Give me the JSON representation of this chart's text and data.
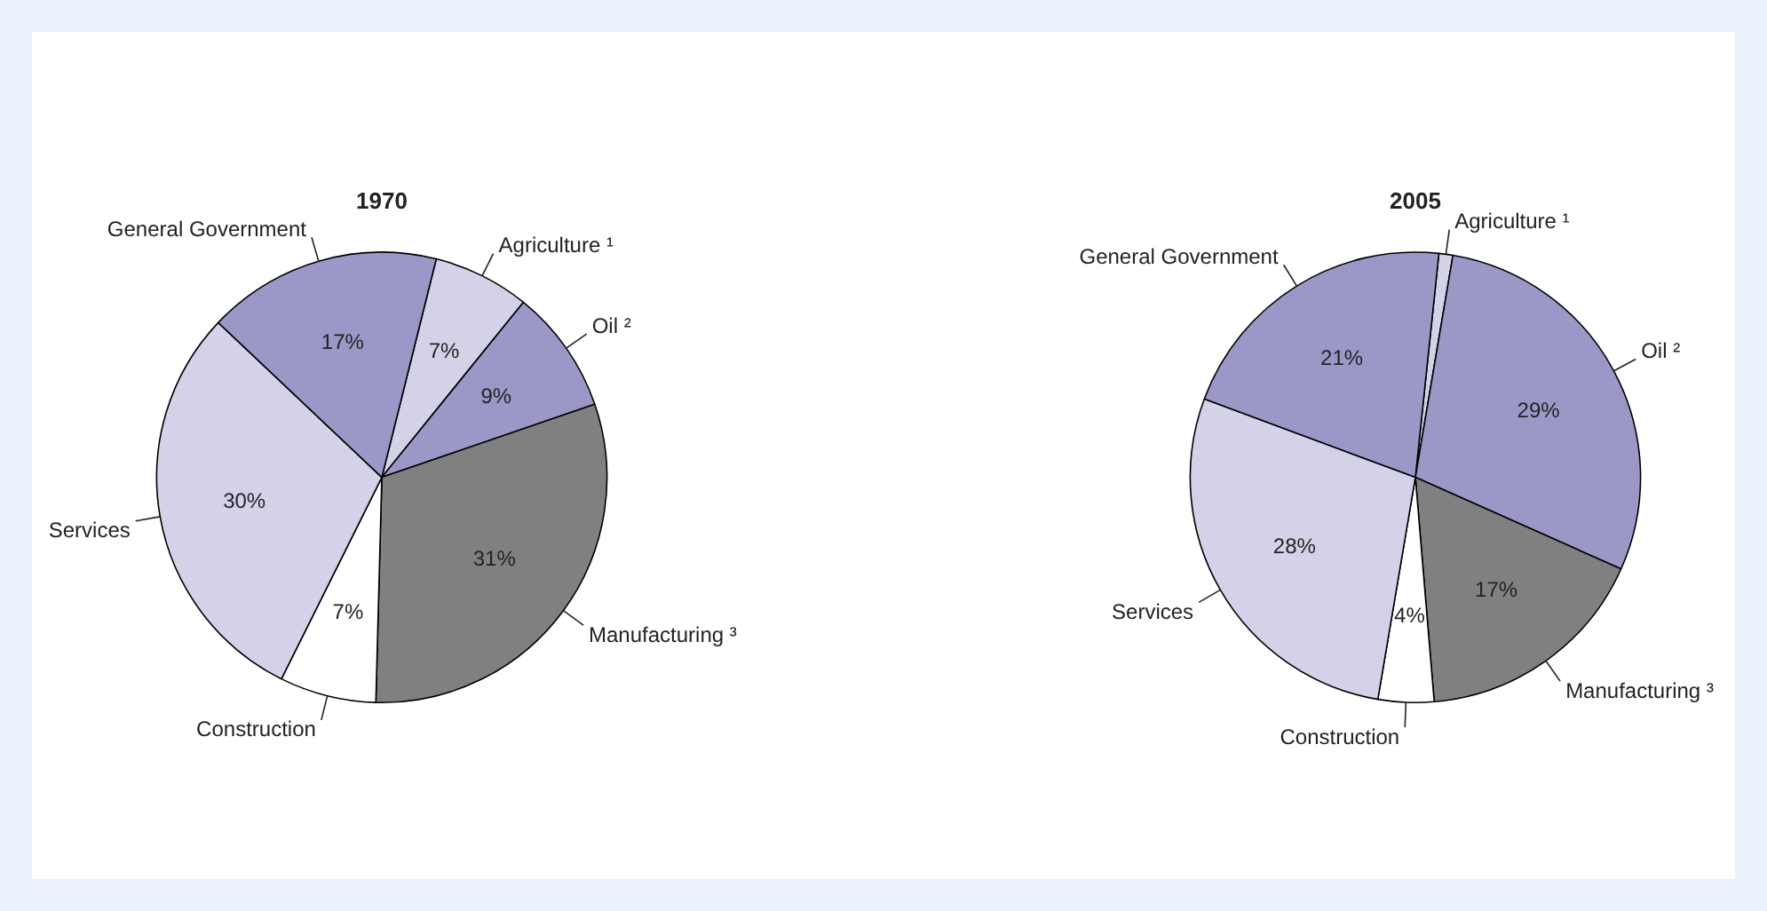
{
  "chart_data": [
    {
      "type": "pie",
      "title": "1970",
      "categories": [
        "Agriculture ¹",
        "Oil ²",
        "Manufacturing ³",
        "Construction",
        "Services",
        "General Government"
      ],
      "values": [
        7,
        9,
        31,
        7,
        30,
        17
      ],
      "value_labels": [
        "7%",
        "9%",
        "31%",
        "7%",
        "30%",
        "17%"
      ],
      "colors": [
        "#d4d2e8",
        "#9b98c8",
        "#808080",
        "#ffffff",
        "#d4d2e8",
        "#9b98c8"
      ]
    },
    {
      "type": "pie",
      "title": "2005",
      "categories": [
        "Agriculture ¹",
        "Oil ²",
        "Manufacturing ³",
        "Construction",
        "Services",
        "General Government"
      ],
      "values": [
        1,
        29,
        17,
        4,
        28,
        21
      ],
      "value_labels": [
        null,
        "29%",
        "17%",
        "4%",
        "28%",
        "21%"
      ],
      "colors": [
        "#d4d2e8",
        "#9b98c8",
        "#808080",
        "#ffffff",
        "#d4d2e8",
        "#9b98c8"
      ]
    }
  ]
}
